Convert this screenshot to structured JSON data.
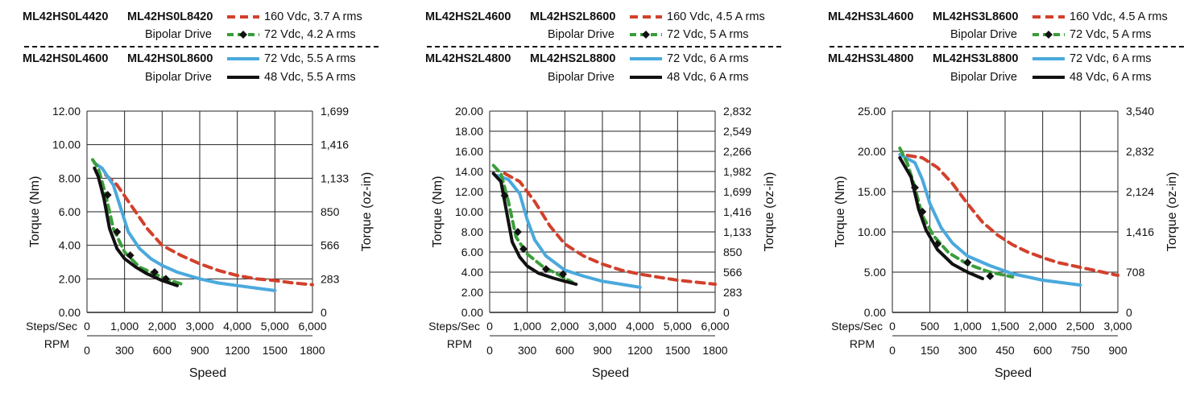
{
  "colors": {
    "red_dashed": "#d2402b",
    "green_dashed": "#3a9e3a",
    "blue": "#4aa9dd",
    "black": "#111111"
  },
  "chart_data": [
    {
      "type": "line",
      "legend": {
        "group_top": {
          "part_a": "ML42HS0L4420",
          "part_b": "ML42HS0L8420",
          "drive": "Bipolar Drive",
          "series1_label": "160 Vdc, 3.7 A rms",
          "series2_label": "72 Vdc, 4.2 A rms"
        },
        "group_bottom": {
          "part_a": "ML42HS0L4600",
          "part_b": "ML42HS0L8600",
          "drive": "Bipolar Drive",
          "series1_label": "72 Vdc, 5.5 A rms",
          "series2_label": "48 Vdc, 5.5 A rms"
        }
      },
      "ylabel_left": "Torque (Nm)",
      "ylabel_right": "Torque (oz-in)",
      "xlabel": "Speed",
      "steps_label": "Steps/Sec",
      "rpm_label": "RPM",
      "ylim": [
        0,
        12
      ],
      "y_ticks_left": [
        "0.00",
        "2.00",
        "4.00",
        "6.00",
        "8.00",
        "10.00",
        "12.00"
      ],
      "y_ticks_right": [
        "0",
        "283",
        "566",
        "850",
        "1,133",
        "1,416",
        "1,699"
      ],
      "xlim": [
        0,
        6000
      ],
      "x_ticks_steps": [
        "0",
        "1,000",
        "2,000",
        "3,000",
        "4,000",
        "5,000",
        "6,000"
      ],
      "x_ticks_rpm": [
        "0",
        "300",
        "600",
        "900",
        "1200",
        "1500",
        "1800"
      ],
      "series": [
        {
          "name": "160 Vdc, 3.7 A rms",
          "style": "red-dashed",
          "x": [
            500,
            800,
            1200,
            1600,
            2000,
            2500,
            3000,
            3500,
            4000,
            4500,
            5000,
            5500,
            6000
          ],
          "y": [
            8.2,
            7.6,
            6.3,
            5.0,
            4.0,
            3.4,
            2.9,
            2.5,
            2.2,
            2.0,
            1.9,
            1.75,
            1.65
          ]
        },
        {
          "name": "72 Vdc, 4.2 A rms",
          "style": "green-dashed-diamond",
          "x": [
            150,
            300,
            500,
            700,
            1000,
            1400,
            1800,
            2100,
            2500
          ],
          "y": [
            9.1,
            8.6,
            7.0,
            5.0,
            3.6,
            2.7,
            2.3,
            2.0,
            1.7
          ],
          "markers": [
            [
              550,
              7.0
            ],
            [
              800,
              4.8
            ],
            [
              1150,
              3.4
            ],
            [
              1800,
              2.4
            ],
            [
              2100,
              2.0
            ]
          ]
        },
        {
          "name": "72 Vdc, 5.5 A rms",
          "style": "blue-solid",
          "x": [
            200,
            400,
            700,
            900,
            1100,
            1400,
            1700,
            2000,
            2400,
            3000,
            3500,
            4000,
            4500,
            5000
          ],
          "y": [
            8.9,
            8.6,
            7.6,
            6.2,
            4.8,
            3.8,
            3.2,
            2.8,
            2.4,
            2.0,
            1.75,
            1.6,
            1.45,
            1.3
          ]
        },
        {
          "name": "48 Vdc, 5.5 A rms",
          "style": "black-solid",
          "x": [
            200,
            300,
            450,
            600,
            800,
            1000,
            1300,
            1600,
            2000,
            2400
          ],
          "y": [
            8.6,
            8.1,
            6.8,
            5.0,
            3.8,
            3.2,
            2.7,
            2.3,
            1.9,
            1.6
          ]
        }
      ]
    },
    {
      "type": "line",
      "legend": {
        "group_top": {
          "part_a": "ML42HS2L4600",
          "part_b": "ML42HS2L8600",
          "drive": "Bipolar Drive",
          "series1_label": "160 Vdc, 4.5 A rms",
          "series2_label": "72 Vdc, 5 A rms"
        },
        "group_bottom": {
          "part_a": "ML42HS2L4800",
          "part_b": "ML42HS2L8800",
          "drive": "Bipolar Drive",
          "series1_label": "72 Vdc, 6 A rms",
          "series2_label": "48 Vdc, 6 A rms"
        }
      },
      "ylabel_left": "Torque (Nm)",
      "ylabel_right": "Torque (oz-in)",
      "xlabel": "Speed",
      "steps_label": "Steps/Sec",
      "rpm_label": "RPM",
      "ylim": [
        0,
        20
      ],
      "y_ticks_left": [
        "0.00",
        "2.00",
        "4.00",
        "6.00",
        "8.00",
        "10.00",
        "12.00",
        "14.00",
        "16.00",
        "18.00",
        "20.00"
      ],
      "y_ticks_right": [
        "0",
        "283",
        "566",
        "850",
        "1,133",
        "1,416",
        "1,699",
        "1,982",
        "2,266",
        "2,549",
        "2,832"
      ],
      "xlim": [
        0,
        6000
      ],
      "x_ticks_steps": [
        "0",
        "1,000",
        "2,000",
        "3,000",
        "4,000",
        "5,000",
        "6,000"
      ],
      "x_ticks_rpm": [
        "0",
        "300",
        "600",
        "900",
        "1200",
        "1500",
        "1800"
      ],
      "series": [
        {
          "name": "160 Vdc, 4.5 A rms",
          "style": "red-dashed",
          "x": [
            400,
            800,
            1200,
            1600,
            2000,
            2500,
            3000,
            3500,
            4000,
            4500,
            5000,
            5500,
            6000
          ],
          "y": [
            13.8,
            13.0,
            11.0,
            8.6,
            6.8,
            5.6,
            4.8,
            4.2,
            3.8,
            3.5,
            3.2,
            3.0,
            2.8
          ]
        },
        {
          "name": "72 Vdc, 5 A rms",
          "style": "green-dashed-diamond",
          "x": [
            100,
            300,
            500,
            700,
            1000,
            1400,
            1800,
            2200
          ],
          "y": [
            14.6,
            13.8,
            11.0,
            7.5,
            5.8,
            4.6,
            3.8,
            3.0
          ],
          "markers": [
            [
              400,
              11.6
            ],
            [
              750,
              8.0
            ],
            [
              900,
              6.3
            ],
            [
              1500,
              4.3
            ],
            [
              1950,
              3.8
            ]
          ]
        },
        {
          "name": "72 Vdc, 6 A rms",
          "style": "blue-solid",
          "x": [
            200,
            500,
            800,
            1000,
            1200,
            1500,
            2000,
            2500,
            3000,
            3500,
            4000
          ],
          "y": [
            13.6,
            13.2,
            11.8,
            9.2,
            7.2,
            5.6,
            4.2,
            3.6,
            3.1,
            2.8,
            2.5
          ]
        },
        {
          "name": "48 Vdc, 6 A rms",
          "style": "black-solid",
          "x": [
            100,
            300,
            450,
            600,
            800,
            1000,
            1300,
            1700,
            2000,
            2300
          ],
          "y": [
            13.8,
            13.0,
            10.0,
            7.0,
            5.5,
            4.6,
            3.9,
            3.4,
            3.1,
            2.8
          ]
        }
      ]
    },
    {
      "type": "line",
      "legend": {
        "group_top": {
          "part_a": "ML42HS3L4600",
          "part_b": "ML42HS3L8600",
          "drive": "Bipolar Drive",
          "series1_label": "160 Vdc, 4.5 A rms",
          "series2_label": "72 Vdc, 5 A rms"
        },
        "group_bottom": {
          "part_a": "ML42HS3L4800",
          "part_b": "ML42HS3L8800",
          "drive": "Bipolar Drive",
          "series1_label": "72 Vdc, 6 A rms",
          "series2_label": "48 Vdc, 6 A rms"
        }
      },
      "ylabel_left": "Torque (Nm)",
      "ylabel_right": "Torque (oz-in)",
      "xlabel": "Speed",
      "steps_label": "Steps/Sec",
      "rpm_label": "RPM",
      "ylim": [
        0,
        25
      ],
      "y_ticks_left": [
        "0.00",
        "5.00",
        "10.00",
        "15.00",
        "20.00",
        "25.00"
      ],
      "y_ticks_right": [
        "0",
        "708",
        "1,416",
        "2,124",
        "2,832",
        "3,540"
      ],
      "xlim": [
        0,
        3000
      ],
      "x_ticks_steps": [
        "0",
        "500",
        "1,000",
        "1,500",
        "2,000",
        "2,500",
        "3,000"
      ],
      "x_ticks_rpm": [
        "0",
        "150",
        "300",
        "450",
        "600",
        "750",
        "900"
      ],
      "series": [
        {
          "name": "160 Vdc, 4.5 A rms",
          "style": "red-dashed",
          "x": [
            200,
            400,
            600,
            800,
            1000,
            1200,
            1400,
            1600,
            1800,
            2000,
            2200,
            2500,
            2800,
            3000
          ],
          "y": [
            19.5,
            19.2,
            18.0,
            16.0,
            13.5,
            11.2,
            9.6,
            8.4,
            7.5,
            6.8,
            6.2,
            5.6,
            5.0,
            4.6
          ]
        },
        {
          "name": "72 Vdc, 5 A rms",
          "style": "green-dashed-diamond",
          "x": [
            100,
            200,
            300,
            400,
            550,
            750,
            1000,
            1300,
            1600
          ],
          "y": [
            20.4,
            18.5,
            15.5,
            12.0,
            9.5,
            7.4,
            6.0,
            5.0,
            4.4
          ],
          "markers": [
            [
              300,
              15.5
            ],
            [
              400,
              12.5
            ],
            [
              600,
              8.5
            ],
            [
              1000,
              6.2
            ],
            [
              1300,
              4.5
            ]
          ]
        },
        {
          "name": "72 Vdc, 6 A rms",
          "style": "blue-solid",
          "x": [
            100,
            300,
            400,
            500,
            650,
            800,
            1000,
            1300,
            1600,
            2000,
            2500
          ],
          "y": [
            19.6,
            18.6,
            16.5,
            13.5,
            10.5,
            8.6,
            7.0,
            5.8,
            4.8,
            4.0,
            3.4
          ]
        },
        {
          "name": "48 Vdc, 6 A rms",
          "style": "black-solid",
          "x": [
            100,
            250,
            350,
            450,
            600,
            800,
            1000,
            1200
          ],
          "y": [
            19.2,
            16.8,
            12.8,
            10.2,
            7.8,
            6.0,
            5.0,
            4.2
          ]
        }
      ]
    }
  ]
}
